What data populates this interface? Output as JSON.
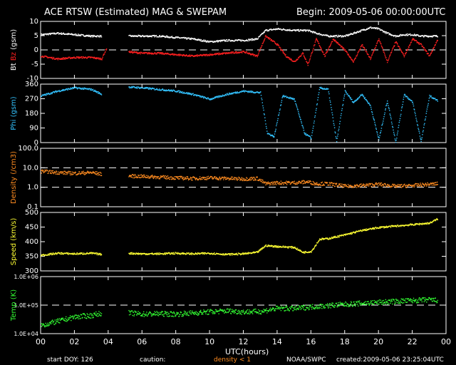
{
  "header": {
    "title": "ACE RTSW (Estimated) MAG & SWEPAM",
    "begin": "Begin: 2009-05-06 00:00:00UTC"
  },
  "footer": {
    "start_doy": "start DOY: 126",
    "caution": "caution:",
    "density_note": "density < 1",
    "source": "NOAA/SWPC",
    "created": "created:2009-05-06 23:25:04UTC"
  },
  "colors": {
    "bt": "#ffffff",
    "bz": "#ff2020",
    "phi": "#33c3ff",
    "density": "#ff8c20",
    "speed": "#ffff33",
    "temp": "#33ff33",
    "density_note": "#ff8c20"
  },
  "chart_data": [
    {
      "type": "scatter",
      "panel": "mag",
      "ylabel": "Bt Bz (gsm)",
      "ylabel_parts": [
        "Bt",
        "Bz",
        "(gsm)"
      ],
      "ylim": [
        -10,
        10
      ],
      "yticks": [
        "10",
        "5",
        "0",
        "-5",
        "-10"
      ],
      "reference_lines": [
        0
      ],
      "series": [
        {
          "name": "Bt",
          "x": [
            0,
            1,
            2,
            3,
            3.6,
            5.2,
            6,
            7,
            8,
            9,
            10,
            11,
            12,
            12.8,
            13.3,
            14,
            15,
            15.8,
            16.3,
            17,
            18,
            19,
            19.5,
            20,
            20.5,
            21,
            21.5,
            22,
            22.5,
            23,
            23.5
          ],
          "y": [
            5.5,
            6,
            5.5,
            5,
            5,
            5,
            5,
            5,
            4.5,
            4,
            3,
            3.5,
            3.5,
            4,
            7,
            7.5,
            7,
            7,
            6,
            5,
            5,
            7,
            8,
            7.5,
            6,
            5,
            5.5,
            5.5,
            5,
            5,
            5
          ]
        },
        {
          "name": "Bz",
          "x": [
            0,
            1,
            2,
            3,
            3.6,
            3.9,
            5.2,
            6,
            7,
            8,
            9,
            10,
            11,
            12,
            12.8,
            13.3,
            14,
            14.5,
            15,
            15.5,
            15.8,
            16.3,
            16.8,
            17.3,
            18,
            18.5,
            19,
            19.5,
            20,
            20.5,
            21,
            21.5,
            22,
            22.5,
            23,
            23.5
          ],
          "y": [
            -2,
            -3,
            -2.5,
            -2.5,
            -3,
            1,
            -0.5,
            -1,
            -1,
            -1.5,
            -2,
            -1.5,
            -1,
            -0.5,
            -2,
            5,
            2,
            -2,
            -4,
            -1,
            -5,
            4,
            -2,
            4,
            0,
            -4,
            2,
            -3,
            4,
            -4,
            3,
            -2,
            4,
            2,
            -2,
            4
          ]
        }
      ]
    },
    {
      "type": "scatter",
      "panel": "phi",
      "ylabel": "Phi (gsm)",
      "ylim": [
        0,
        360
      ],
      "yticks": [
        "360",
        "270",
        "180",
        "90",
        "0"
      ],
      "series": [
        {
          "name": "Phi",
          "x": [
            0,
            1,
            2,
            3,
            3.6,
            5.2,
            6,
            7,
            8,
            9,
            10,
            11,
            12,
            13,
            13.4,
            13.8,
            14.3,
            15,
            15.6,
            16,
            16.5,
            17,
            17.5,
            18,
            18.5,
            19,
            19.5,
            20,
            20.5,
            21,
            21.5,
            22,
            22.5,
            23,
            23.5
          ],
          "y": [
            290,
            320,
            340,
            330,
            300,
            345,
            340,
            330,
            320,
            300,
            270,
            300,
            320,
            310,
            60,
            40,
            290,
            270,
            60,
            30,
            340,
            330,
            10,
            320,
            250,
            300,
            230,
            20,
            260,
            5,
            300,
            250,
            10,
            290,
            260
          ]
        }
      ]
    },
    {
      "type": "scatter",
      "panel": "density",
      "ylabel": "Density (/cm3)",
      "yscale": "log",
      "ylim": [
        0.1,
        100
      ],
      "yticks": [
        "100.0",
        "10.0",
        "1.0",
        "0.1"
      ],
      "reference_lines": [
        1,
        10
      ],
      "series": [
        {
          "name": "Density",
          "x": [
            0,
            1,
            2,
            3,
            3.6,
            5.2,
            6,
            7,
            8,
            9,
            10,
            11,
            12,
            12.8,
            13.3,
            14,
            15,
            15.8,
            16.3,
            17,
            18,
            19,
            20,
            21,
            22,
            23,
            23.5
          ],
          "y": [
            7,
            6,
            5.5,
            6,
            5,
            4,
            3.8,
            3.5,
            3.2,
            3,
            3.2,
            3,
            2.8,
            3,
            1.6,
            1.8,
            1.8,
            2,
            1.6,
            1.6,
            1.2,
            1.3,
            1.5,
            1.2,
            1.3,
            1.5,
            1.6
          ]
        }
      ]
    },
    {
      "type": "scatter",
      "panel": "speed",
      "ylabel": "Speed (km/s)",
      "ylim": [
        300,
        500
      ],
      "yticks": [
        "500",
        "450",
        "400",
        "350",
        "300"
      ],
      "series": [
        {
          "name": "Speed",
          "x": [
            0,
            1,
            2,
            3,
            3.6,
            5.2,
            6,
            7,
            8,
            9,
            10,
            11,
            12,
            12.8,
            13.3,
            14,
            15,
            15.5,
            16,
            16.5,
            17,
            18,
            19,
            20,
            21,
            22,
            23,
            23.5
          ],
          "y": [
            355,
            362,
            360,
            362,
            358,
            362,
            360,
            360,
            362,
            360,
            362,
            358,
            360,
            365,
            388,
            385,
            382,
            365,
            368,
            410,
            412,
            425,
            440,
            450,
            455,
            460,
            465,
            480
          ]
        }
      ]
    },
    {
      "type": "scatter",
      "panel": "temp",
      "ylabel": "Temp (K)",
      "yscale": "log",
      "ylim": [
        10000,
        1000000
      ],
      "yticks": [
        "1.0E+06",
        "1.0E+05",
        "1.0E+04"
      ],
      "reference_lines": [
        100000
      ],
      "series": [
        {
          "name": "Temp",
          "x": [
            0,
            1,
            2,
            3,
            3.6,
            5.2,
            6,
            7,
            8,
            9,
            10,
            11,
            12,
            13,
            14,
            15,
            16,
            17,
            18,
            19,
            20,
            21,
            22,
            23,
            23.5
          ],
          "y": [
            20000,
            28000,
            40000,
            45000,
            55000,
            55000,
            50000,
            52000,
            50000,
            55000,
            60000,
            65000,
            60000,
            62000,
            80000,
            78000,
            90000,
            100000,
            110000,
            120000,
            130000,
            140000,
            150000,
            160000,
            150000
          ]
        }
      ]
    }
  ],
  "xaxis": {
    "label": "UTC(hours)",
    "xlim": [
      0,
      24
    ],
    "ticks": [
      "00",
      "02",
      "04",
      "06",
      "08",
      "10",
      "12",
      "14",
      "16",
      "18",
      "20",
      "22",
      "00"
    ]
  }
}
